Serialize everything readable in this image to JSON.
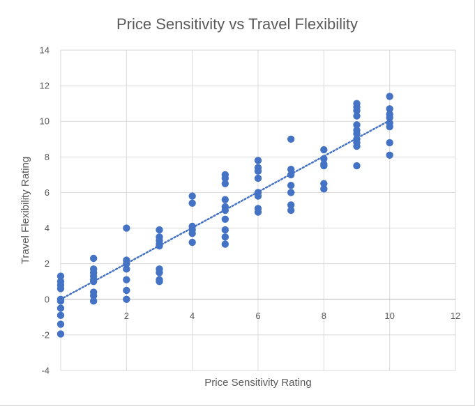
{
  "chart_data": {
    "type": "scatter",
    "title": "Price Sensitivity vs Travel Flexibility",
    "xlabel": "Price Sensitivity Rating",
    "ylabel": "Travel Flexibility Rating",
    "xlim": [
      0,
      12
    ],
    "ylim": [
      -4,
      14
    ],
    "xticks": [
      2,
      4,
      6,
      8,
      10,
      12
    ],
    "yticks": [
      -4,
      -2,
      0,
      2,
      4,
      6,
      8,
      10,
      12,
      14
    ],
    "grid": true,
    "legend": "none",
    "marker_color": "#4472c4",
    "trendline": {
      "type": "linear",
      "style": "dotted",
      "color": "#4472c4",
      "from": [
        0,
        0
      ],
      "to": [
        10,
        10.05
      ]
    },
    "points": [
      [
        0,
        1.3
      ],
      [
        0,
        1.0
      ],
      [
        0,
        0.8
      ],
      [
        0,
        0.6
      ],
      [
        0,
        0.0
      ],
      [
        0,
        -0.1
      ],
      [
        0,
        -0.5
      ],
      [
        0,
        -0.9
      ],
      [
        0,
        -1.4
      ],
      [
        0,
        -1.95
      ],
      [
        1,
        2.3
      ],
      [
        1,
        1.7
      ],
      [
        1,
        1.5
      ],
      [
        1,
        1.3
      ],
      [
        1,
        1.1
      ],
      [
        1,
        1.0
      ],
      [
        1,
        0.4
      ],
      [
        1,
        0.2
      ],
      [
        1,
        -0.1
      ],
      [
        2,
        4.0
      ],
      [
        2,
        2.2
      ],
      [
        2,
        2.0
      ],
      [
        2,
        1.7
      ],
      [
        2,
        1.1
      ],
      [
        2,
        0.5
      ],
      [
        2,
        0.0
      ],
      [
        3,
        3.9
      ],
      [
        3,
        3.5
      ],
      [
        3,
        3.3
      ],
      [
        3,
        3.1
      ],
      [
        3,
        3.0
      ],
      [
        3,
        1.7
      ],
      [
        3,
        1.5
      ],
      [
        3,
        1.1
      ],
      [
        3,
        1.0
      ],
      [
        4,
        5.8
      ],
      [
        4,
        5.4
      ],
      [
        4,
        4.1
      ],
      [
        4,
        3.9
      ],
      [
        4,
        3.7
      ],
      [
        4,
        3.2
      ],
      [
        5,
        7.0
      ],
      [
        5,
        6.8
      ],
      [
        5,
        6.5
      ],
      [
        5,
        5.6
      ],
      [
        5,
        5.2
      ],
      [
        5,
        5.0
      ],
      [
        5,
        4.5
      ],
      [
        5,
        3.9
      ],
      [
        5,
        3.5
      ],
      [
        5,
        3.1
      ],
      [
        6,
        7.8
      ],
      [
        6,
        7.4
      ],
      [
        6,
        7.2
      ],
      [
        6,
        6.8
      ],
      [
        6,
        6.0
      ],
      [
        6,
        5.8
      ],
      [
        6,
        5.1
      ],
      [
        6,
        4.9
      ],
      [
        7,
        9.0
      ],
      [
        7,
        7.3
      ],
      [
        7,
        7.0
      ],
      [
        7,
        6.4
      ],
      [
        7,
        6.0
      ],
      [
        7,
        5.3
      ],
      [
        7,
        5.0
      ],
      [
        8,
        8.4
      ],
      [
        8,
        7.9
      ],
      [
        8,
        7.6
      ],
      [
        8,
        7.5
      ],
      [
        8,
        6.5
      ],
      [
        8,
        6.2
      ],
      [
        9,
        11.0
      ],
      [
        9,
        10.8
      ],
      [
        9,
        10.6
      ],
      [
        9,
        10.3
      ],
      [
        9,
        9.8
      ],
      [
        9,
        9.5
      ],
      [
        9,
        9.3
      ],
      [
        9,
        9.0
      ],
      [
        9,
        8.8
      ],
      [
        9,
        8.6
      ],
      [
        9,
        7.5
      ],
      [
        10,
        11.4
      ],
      [
        10,
        10.7
      ],
      [
        10,
        10.4
      ],
      [
        10,
        10.2
      ],
      [
        10,
        9.9
      ],
      [
        10,
        9.7
      ],
      [
        10,
        8.8
      ],
      [
        10,
        8.1
      ]
    ]
  }
}
